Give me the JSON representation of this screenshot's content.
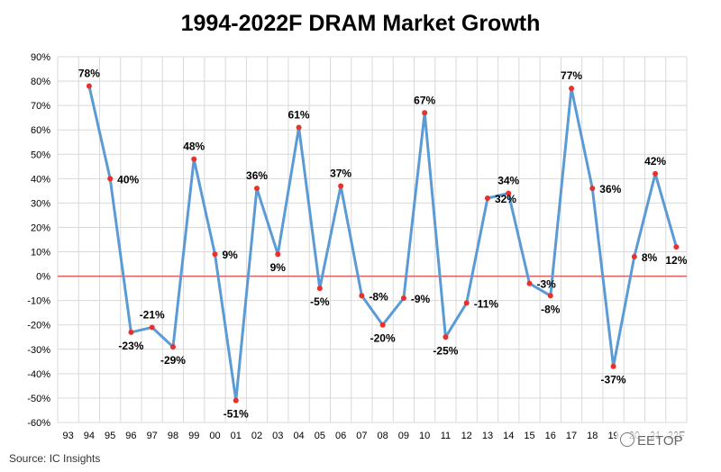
{
  "chart_data": {
    "type": "line",
    "title": "1994-2022F DRAM Market Growth",
    "xlabel": "",
    "ylabel": "",
    "x_ticks": [
      "93",
      "94",
      "95",
      "96",
      "97",
      "98",
      "99",
      "00",
      "01",
      "02",
      "03",
      "04",
      "05",
      "06",
      "07",
      "08",
      "09",
      "10",
      "11",
      "12",
      "13",
      "14",
      "15",
      "16",
      "17",
      "18",
      "19",
      "20",
      "21",
      "22F"
    ],
    "x": [
      "94",
      "95",
      "96",
      "97",
      "98",
      "99",
      "00",
      "01",
      "02",
      "03",
      "04",
      "05",
      "06",
      "07",
      "08",
      "09",
      "10",
      "11",
      "12",
      "13",
      "14",
      "15",
      "16",
      "17",
      "18",
      "19",
      "20",
      "21",
      "22F"
    ],
    "values": [
      78,
      40,
      -23,
      -21,
      -29,
      48,
      9,
      -51,
      36,
      9,
      61,
      -5,
      37,
      -8,
      -20,
      -9,
      67,
      -25,
      -11,
      32,
      34,
      -3,
      -8,
      77,
      36,
      -37,
      8,
      42,
      12
    ],
    "data_labels": [
      "78%",
      "40%",
      "-23%",
      "-21%",
      "-29%",
      "48%",
      "9%",
      "-51%",
      "36%",
      "9%",
      "61%",
      "-5%",
      "37%",
      "-8%",
      "-20%",
      "-9%",
      "67%",
      "-25%",
      "-11%",
      "32%",
      "34%",
      "-3%",
      "-8%",
      "77%",
      "36%",
      "-37%",
      "8%",
      "42%",
      "12%"
    ],
    "y_ticks": [
      "90%",
      "80%",
      "70%",
      "60%",
      "50%",
      "40%",
      "30%",
      "20%",
      "10%",
      "0%",
      "-10%",
      "-20%",
      "-30%",
      "-40%",
      "-50%",
      "-60%"
    ],
    "ylim": [
      -60,
      90
    ],
    "grid": true,
    "zero_line": true,
    "colors": {
      "line": "#5b9bd5",
      "marker": "#e8312a",
      "zero_line": "#e06060",
      "grid": "#d9d9d9"
    }
  },
  "source": "Source:  IC Insights",
  "watermark": "EETOP"
}
